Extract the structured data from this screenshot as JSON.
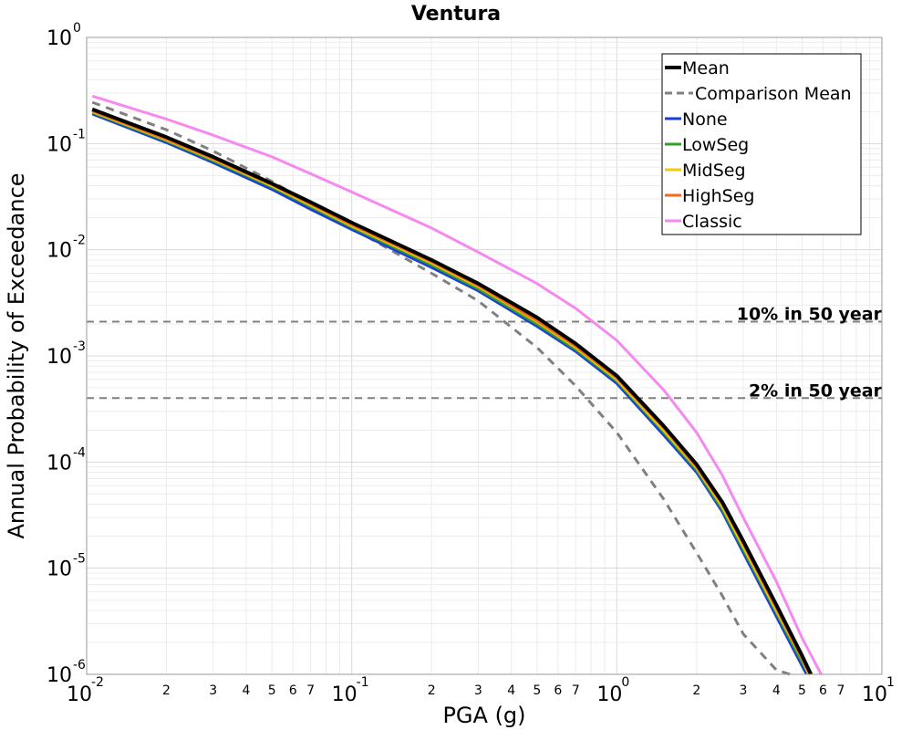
{
  "chart_data": {
    "type": "line",
    "title": "Ventura",
    "xlabel": "PGA (g)",
    "ylabel": "Annual Probability of Exceedance",
    "xscale": "log",
    "yscale": "log",
    "xlim": [
      0.01,
      10
    ],
    "ylim": [
      1e-06,
      1
    ],
    "grid": true,
    "legend_position": "top-right",
    "x_major_ticks": [
      {
        "base": "10",
        "exp": "-2"
      },
      {
        "base": "10",
        "exp": "-1"
      },
      {
        "base": "10",
        "exp": "0"
      },
      {
        "base": "10",
        "exp": "1"
      }
    ],
    "y_major_ticks": [
      {
        "base": "10",
        "exp": "0"
      },
      {
        "base": "10",
        "exp": "-1"
      },
      {
        "base": "10",
        "exp": "-2"
      },
      {
        "base": "10",
        "exp": "-3"
      },
      {
        "base": "10",
        "exp": "-4"
      },
      {
        "base": "10",
        "exp": "-5"
      },
      {
        "base": "10",
        "exp": "-6"
      }
    ],
    "x_minor_tick_labels": [
      "2",
      "3",
      "4",
      "5",
      "6",
      "7"
    ],
    "reference_lines": [
      {
        "label": "10% in 50 year",
        "y": 0.0021
      },
      {
        "label": "2% in 50 year",
        "y": 0.0004
      }
    ],
    "series": [
      {
        "name": "Mean",
        "color": "#000000",
        "dash": false,
        "width": 4,
        "x": [
          0.0105,
          0.02,
          0.03,
          0.05,
          0.07,
          0.1,
          0.2,
          0.3,
          0.5,
          0.7,
          1.0,
          1.5,
          2.0,
          2.5,
          3.0,
          4.0,
          5.0,
          5.4
        ],
        "y": [
          0.21,
          0.115,
          0.075,
          0.042,
          0.028,
          0.018,
          0.008,
          0.0048,
          0.0023,
          0.0013,
          0.00065,
          0.00022,
          9.5e-05,
          4.2e-05,
          1.8e-05,
          4.5e-06,
          1.5e-06,
          1e-06
        ]
      },
      {
        "name": "Comparison Mean",
        "color": "#808080",
        "dash": true,
        "width": 3,
        "x": [
          0.0105,
          0.02,
          0.03,
          0.05,
          0.07,
          0.1,
          0.2,
          0.3,
          0.5,
          0.7,
          1.0,
          1.5,
          2.0,
          2.5,
          3.0,
          4.0,
          4.5
        ],
        "y": [
          0.245,
          0.135,
          0.085,
          0.044,
          0.027,
          0.016,
          0.006,
          0.0033,
          0.0012,
          0.00052,
          0.00019,
          4.5e-05,
          1.4e-05,
          5.5e-06,
          2.4e-06,
          1.1e-06,
          1e-06
        ]
      },
      {
        "name": "None",
        "color": "#1a3fd9",
        "dash": false,
        "width": 3,
        "x": [
          0.0105,
          0.02,
          0.03,
          0.05,
          0.07,
          0.1,
          0.2,
          0.3,
          0.5,
          0.7,
          1.0,
          1.5,
          2.0,
          2.5,
          3.0,
          4.0,
          5.0,
          5.2
        ],
        "y": [
          0.19,
          0.102,
          0.066,
          0.037,
          0.024,
          0.0155,
          0.0068,
          0.0041,
          0.0019,
          0.0011,
          0.00055,
          0.00018,
          8e-05,
          3.4e-05,
          1.4e-05,
          3.5e-06,
          1.2e-06,
          1e-06
        ]
      },
      {
        "name": "LowSeg",
        "color": "#33a02c",
        "dash": false,
        "width": 3,
        "x": [
          0.0105,
          0.02,
          0.03,
          0.05,
          0.07,
          0.1,
          0.2,
          0.3,
          0.5,
          0.7,
          1.0,
          1.5,
          2.0,
          2.5,
          3.0,
          4.0,
          5.0,
          5.3
        ],
        "y": [
          0.196,
          0.106,
          0.069,
          0.039,
          0.0255,
          0.0163,
          0.0072,
          0.0043,
          0.002,
          0.00115,
          0.00058,
          0.000192,
          8.4e-05,
          3.6e-05,
          1.5e-05,
          3.8e-06,
          1.3e-06,
          1e-06
        ]
      },
      {
        "name": "MidSeg",
        "color": "#f2cc0c",
        "dash": false,
        "width": 3,
        "x": [
          0.0105,
          0.02,
          0.03,
          0.05,
          0.07,
          0.1,
          0.2,
          0.3,
          0.5,
          0.7,
          1.0,
          1.5,
          2.0,
          2.5,
          3.0,
          4.0,
          5.0,
          5.3
        ],
        "y": [
          0.2,
          0.108,
          0.071,
          0.04,
          0.0263,
          0.0168,
          0.0075,
          0.0045,
          0.0021,
          0.0012,
          0.0006,
          0.0002,
          8.8e-05,
          3.8e-05,
          1.6e-05,
          4e-06,
          1.4e-06,
          1e-06
        ]
      },
      {
        "name": "HighSeg",
        "color": "#f26b1d",
        "dash": false,
        "width": 3,
        "x": [
          0.0105,
          0.02,
          0.03,
          0.05,
          0.07,
          0.1,
          0.2,
          0.3,
          0.5,
          0.7,
          1.0,
          1.5,
          2.0,
          2.5,
          3.0,
          4.0,
          5.0,
          5.35
        ],
        "y": [
          0.203,
          0.11,
          0.072,
          0.041,
          0.027,
          0.0172,
          0.0077,
          0.0046,
          0.00215,
          0.00123,
          0.00062,
          0.00021,
          9e-05,
          4e-05,
          1.7e-05,
          4.2e-06,
          1.4e-06,
          1e-06
        ]
      },
      {
        "name": "Classic",
        "color": "#f589f0",
        "dash": false,
        "width": 3,
        "x": [
          0.0105,
          0.02,
          0.03,
          0.05,
          0.07,
          0.1,
          0.2,
          0.3,
          0.5,
          0.7,
          1.0,
          1.5,
          2.0,
          2.5,
          3.0,
          4.0,
          5.0,
          5.9
        ],
        "y": [
          0.28,
          0.17,
          0.12,
          0.075,
          0.052,
          0.035,
          0.016,
          0.0095,
          0.0048,
          0.0028,
          0.0014,
          0.00048,
          0.00019,
          7.5e-05,
          3e-05,
          7.5e-06,
          2.2e-06,
          1e-06
        ]
      }
    ]
  }
}
